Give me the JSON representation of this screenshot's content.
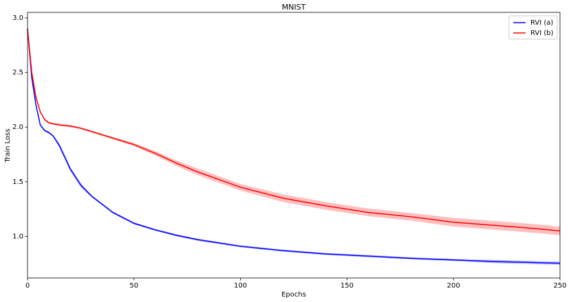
{
  "chart_data": {
    "type": "line",
    "title": "MNIST",
    "x_label": "Epochs",
    "y_label": "Train Loss",
    "x": [
      0,
      2,
      4,
      6,
      8,
      10,
      12,
      15,
      20,
      25,
      30,
      40,
      50,
      60,
      70,
      80,
      90,
      100,
      120,
      140,
      160,
      180,
      200,
      220,
      240,
      250
    ],
    "series": [
      {
        "name": "RVI (a)",
        "color": "#0000ff",
        "values": [
          2.9,
          2.45,
          2.2,
          2.02,
          1.97,
          1.95,
          1.92,
          1.83,
          1.62,
          1.47,
          1.37,
          1.22,
          1.12,
          1.06,
          1.01,
          0.97,
          0.94,
          0.91,
          0.87,
          0.84,
          0.82,
          0.8,
          0.785,
          0.77,
          0.76,
          0.755
        ],
        "upper": [
          2.91,
          2.46,
          2.21,
          2.03,
          1.98,
          1.96,
          1.93,
          1.85,
          1.64,
          1.49,
          1.38,
          1.23,
          1.13,
          1.07,
          1.02,
          0.98,
          0.95,
          0.92,
          0.88,
          0.85,
          0.83,
          0.81,
          0.795,
          0.785,
          0.775,
          0.77
        ],
        "lower": [
          2.89,
          2.44,
          2.19,
          2.01,
          1.96,
          1.94,
          1.91,
          1.81,
          1.6,
          1.45,
          1.36,
          1.21,
          1.11,
          1.05,
          1.0,
          0.96,
          0.93,
          0.9,
          0.86,
          0.83,
          0.81,
          0.79,
          0.775,
          0.755,
          0.745,
          0.74
        ]
      },
      {
        "name": "RVI (b)",
        "color": "#ff0000",
        "values": [
          2.9,
          2.5,
          2.27,
          2.14,
          2.07,
          2.04,
          2.03,
          2.02,
          2.01,
          1.99,
          1.96,
          1.9,
          1.84,
          1.76,
          1.67,
          1.59,
          1.52,
          1.45,
          1.35,
          1.28,
          1.22,
          1.18,
          1.13,
          1.1,
          1.07,
          1.05
        ],
        "upper": [
          2.91,
          2.51,
          2.28,
          2.15,
          2.08,
          2.05,
          2.04,
          2.03,
          2.02,
          2.0,
          1.97,
          1.91,
          1.855,
          1.78,
          1.695,
          1.62,
          1.55,
          1.48,
          1.385,
          1.315,
          1.255,
          1.215,
          1.17,
          1.14,
          1.11,
          1.09
        ],
        "lower": [
          2.89,
          2.49,
          2.26,
          2.13,
          2.06,
          2.03,
          2.02,
          2.01,
          2.0,
          1.98,
          1.95,
          1.89,
          1.825,
          1.74,
          1.645,
          1.56,
          1.49,
          1.42,
          1.315,
          1.245,
          1.185,
          1.145,
          1.09,
          1.06,
          1.03,
          1.01
        ]
      }
    ],
    "xlim": [
      0,
      250
    ],
    "xticks": [
      0,
      50,
      100,
      150,
      200,
      250
    ],
    "ylim": [
      0.62,
      3.05
    ],
    "yticks": [
      {
        "value": 1.0,
        "label": "1.0"
      },
      {
        "value": 1.5,
        "label": "1.5"
      },
      {
        "value": 2.0,
        "label": "2.0"
      },
      {
        "value": 2.5,
        "label": "2.5"
      },
      {
        "value": 3.0,
        "label": "3.0"
      }
    ],
    "legend": "upper right",
    "band_opacity": 0.25
  }
}
